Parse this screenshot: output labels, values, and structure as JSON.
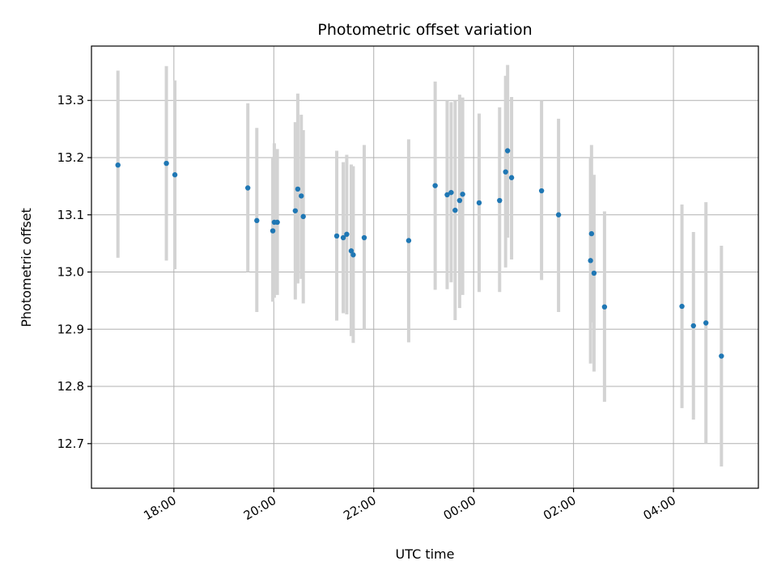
{
  "chart_data": {
    "type": "scatter",
    "title": "Photometric offset variation",
    "xlabel": "UTC time",
    "ylabel": "Photometric offset",
    "x_tick_labels": [
      "18:00",
      "20:00",
      "22:00",
      "00:00",
      "02:00",
      "04:00"
    ],
    "x_tick_hours": [
      18,
      20,
      22,
      24,
      26,
      28
    ],
    "y_ticks": [
      12.7,
      12.8,
      12.9,
      13.0,
      13.1,
      13.2,
      13.3
    ],
    "y_tick_labels": [
      "12.7",
      "12.8",
      "12.9",
      "13.0",
      "13.1",
      "13.2",
      "13.3"
    ],
    "xlim_hours": [
      16.35,
      29.7
    ],
    "ylim": [
      12.622,
      13.395
    ],
    "grid": true,
    "colors": {
      "points": "#1f77b4",
      "error_bars": "#d3d3d3",
      "grid": "#b0b0b0"
    },
    "points": [
      {
        "x": 16.88,
        "y": 13.187,
        "lo": 13.025,
        "hi": 13.352
      },
      {
        "x": 17.85,
        "y": 13.19,
        "lo": 13.02,
        "hi": 13.36
      },
      {
        "x": 18.02,
        "y": 13.17,
        "lo": 13.005,
        "hi": 13.335
      },
      {
        "x": 19.48,
        "y": 13.147,
        "lo": 13.0,
        "hi": 13.295
      },
      {
        "x": 19.66,
        "y": 13.09,
        "lo": 12.93,
        "hi": 13.252
      },
      {
        "x": 19.98,
        "y": 13.072,
        "lo": 12.948,
        "hi": 13.2
      },
      {
        "x": 20.01,
        "y": 13.087,
        "lo": 12.955,
        "hi": 13.225
      },
      {
        "x": 20.07,
        "y": 13.087,
        "lo": 12.96,
        "hi": 13.215
      },
      {
        "x": 20.43,
        "y": 13.107,
        "lo": 12.952,
        "hi": 13.262
      },
      {
        "x": 20.48,
        "y": 13.145,
        "lo": 12.98,
        "hi": 13.312
      },
      {
        "x": 20.55,
        "y": 13.133,
        "lo": 12.988,
        "hi": 13.275
      },
      {
        "x": 20.59,
        "y": 13.097,
        "lo": 12.945,
        "hi": 13.248
      },
      {
        "x": 21.26,
        "y": 13.063,
        "lo": 12.915,
        "hi": 13.212
      },
      {
        "x": 21.39,
        "y": 13.06,
        "lo": 12.928,
        "hi": 13.192
      },
      {
        "x": 21.46,
        "y": 13.066,
        "lo": 12.926,
        "hi": 13.205
      },
      {
        "x": 21.55,
        "y": 13.037,
        "lo": 12.888,
        "hi": 13.188
      },
      {
        "x": 21.59,
        "y": 13.03,
        "lo": 12.876,
        "hi": 13.185
      },
      {
        "x": 21.81,
        "y": 13.06,
        "lo": 12.9,
        "hi": 13.222
      },
      {
        "x": 22.7,
        "y": 13.055,
        "lo": 12.877,
        "hi": 13.232
      },
      {
        "x": 23.23,
        "y": 13.151,
        "lo": 12.969,
        "hi": 13.333
      },
      {
        "x": 23.47,
        "y": 13.135,
        "lo": 12.97,
        "hi": 13.3
      },
      {
        "x": 23.55,
        "y": 13.139,
        "lo": 12.982,
        "hi": 13.297
      },
      {
        "x": 23.63,
        "y": 13.108,
        "lo": 12.916,
        "hi": 13.3
      },
      {
        "x": 23.72,
        "y": 13.125,
        "lo": 12.937,
        "hi": 13.31
      },
      {
        "x": 23.78,
        "y": 13.136,
        "lo": 12.96,
        "hi": 13.305
      },
      {
        "x": 24.11,
        "y": 13.121,
        "lo": 12.965,
        "hi": 13.277
      },
      {
        "x": 24.52,
        "y": 13.125,
        "lo": 12.965,
        "hi": 13.288
      },
      {
        "x": 24.64,
        "y": 13.175,
        "lo": 13.008,
        "hi": 13.343
      },
      {
        "x": 24.68,
        "y": 13.212,
        "lo": 13.06,
        "hi": 13.362
      },
      {
        "x": 24.76,
        "y": 13.165,
        "lo": 13.022,
        "hi": 13.306
      },
      {
        "x": 25.36,
        "y": 13.142,
        "lo": 12.986,
        "hi": 13.3
      },
      {
        "x": 25.7,
        "y": 13.1,
        "lo": 12.93,
        "hi": 13.268
      },
      {
        "x": 26.34,
        "y": 13.02,
        "lo": 12.84,
        "hi": 13.2
      },
      {
        "x": 26.36,
        "y": 13.067,
        "lo": 12.912,
        "hi": 13.222
      },
      {
        "x": 26.41,
        "y": 12.998,
        "lo": 12.826,
        "hi": 13.17
      },
      {
        "x": 26.62,
        "y": 12.939,
        "lo": 12.773,
        "hi": 13.106
      },
      {
        "x": 28.17,
        "y": 12.94,
        "lo": 12.762,
        "hi": 13.118
      },
      {
        "x": 28.4,
        "y": 12.906,
        "lo": 12.742,
        "hi": 13.07
      },
      {
        "x": 28.65,
        "y": 12.911,
        "lo": 12.7,
        "hi": 13.122
      },
      {
        "x": 28.96,
        "y": 12.853,
        "lo": 12.66,
        "hi": 13.046
      }
    ]
  }
}
